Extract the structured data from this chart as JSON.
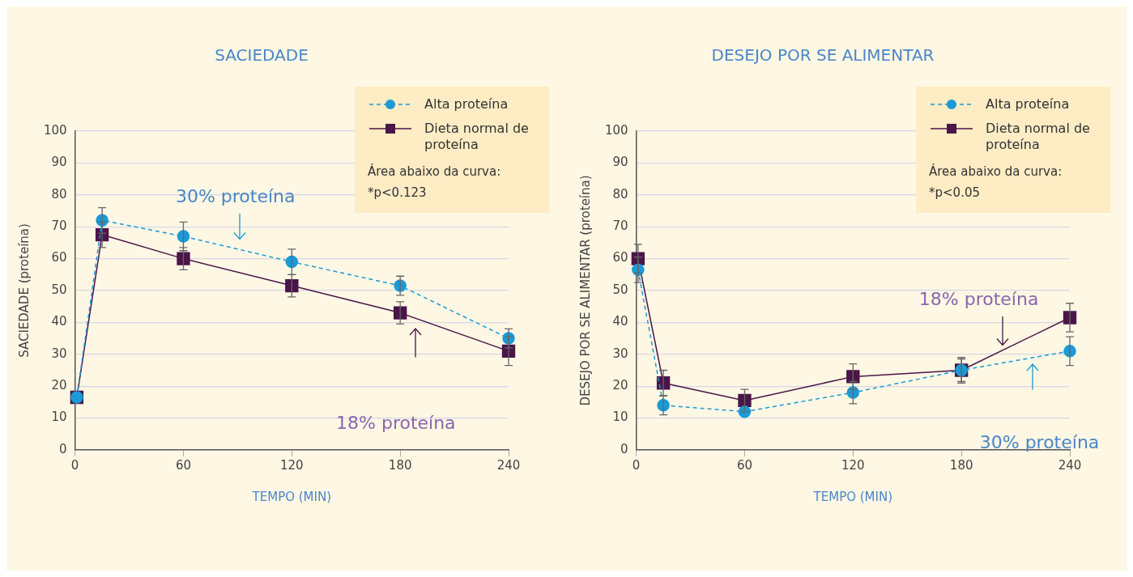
{
  "chart_data": [
    {
      "type": "line",
      "title": "SACIEDADE",
      "xlabel": "TEMPO (MIN)",
      "ylabel": "SACIEDADE (proteína)",
      "xlim": [
        0,
        240
      ],
      "xticks": [
        0,
        60,
        120,
        180,
        240
      ],
      "ylim": [
        0,
        100
      ],
      "yticks": [
        0,
        10,
        20,
        30,
        40,
        50,
        60,
        70,
        80,
        90,
        100
      ],
      "grid": "y",
      "legend": "top right",
      "series": [
        {
          "name": "Alta proteína",
          "color": "#1a9ad6",
          "marker": "circle",
          "line_style": "dashed",
          "x": [
            1,
            15,
            60,
            120,
            180,
            240
          ],
          "values": [
            16.5,
            72,
            67,
            59,
            51.5,
            35
          ],
          "errors": [
            null,
            4,
            4.5,
            4,
            3,
            3
          ]
        },
        {
          "name": "Dieta normal de proteína",
          "color": "#4a1548",
          "marker": "square",
          "line_style": "solid",
          "x": [
            1,
            15,
            60,
            120,
            180,
            240
          ],
          "values": [
            16.5,
            67.5,
            60,
            51.5,
            43,
            31
          ],
          "errors": [
            null,
            4,
            3.5,
            3.5,
            3.5,
            4.5
          ]
        }
      ],
      "annotations": [
        "30% proteína",
        "18% proteína",
        "Área abaixo da curva:",
        "*p<0.123"
      ]
    },
    {
      "type": "line",
      "title": "DESEJO POR SE ALIMENTAR",
      "xlabel": "TEMPO (MIN)",
      "ylabel": "DESEJO POR SE ALIMENTAR (proteína)",
      "xlim": [
        0,
        240
      ],
      "xticks": [
        0,
        60,
        120,
        180,
        240
      ],
      "ylim": [
        0,
        100
      ],
      "yticks": [
        0,
        10,
        20,
        30,
        40,
        50,
        60,
        70,
        80,
        90,
        100
      ],
      "grid": "y",
      "legend": "top right",
      "series": [
        {
          "name": "Alta proteína",
          "color": "#1a9ad6",
          "marker": "circle",
          "line_style": "dashed",
          "x": [
            1,
            15,
            60,
            120,
            180,
            240
          ],
          "values": [
            56.5,
            14,
            12,
            18,
            25,
            31
          ],
          "errors": [
            4,
            3,
            null,
            3.5,
            3.5,
            4.5
          ]
        },
        {
          "name": "Dieta normal de proteína",
          "color": "#4a1548",
          "marker": "square",
          "line_style": "solid",
          "x": [
            1,
            15,
            60,
            120,
            180,
            240
          ],
          "values": [
            60,
            21,
            15.5,
            23,
            25,
            41.5
          ],
          "errors": [
            4.5,
            4,
            3.5,
            4,
            4,
            4.5
          ]
        }
      ],
      "annotations": [
        "18% proteína",
        "30% proteína",
        "Área abaixo da curva:",
        "*p<0.05"
      ]
    }
  ]
}
